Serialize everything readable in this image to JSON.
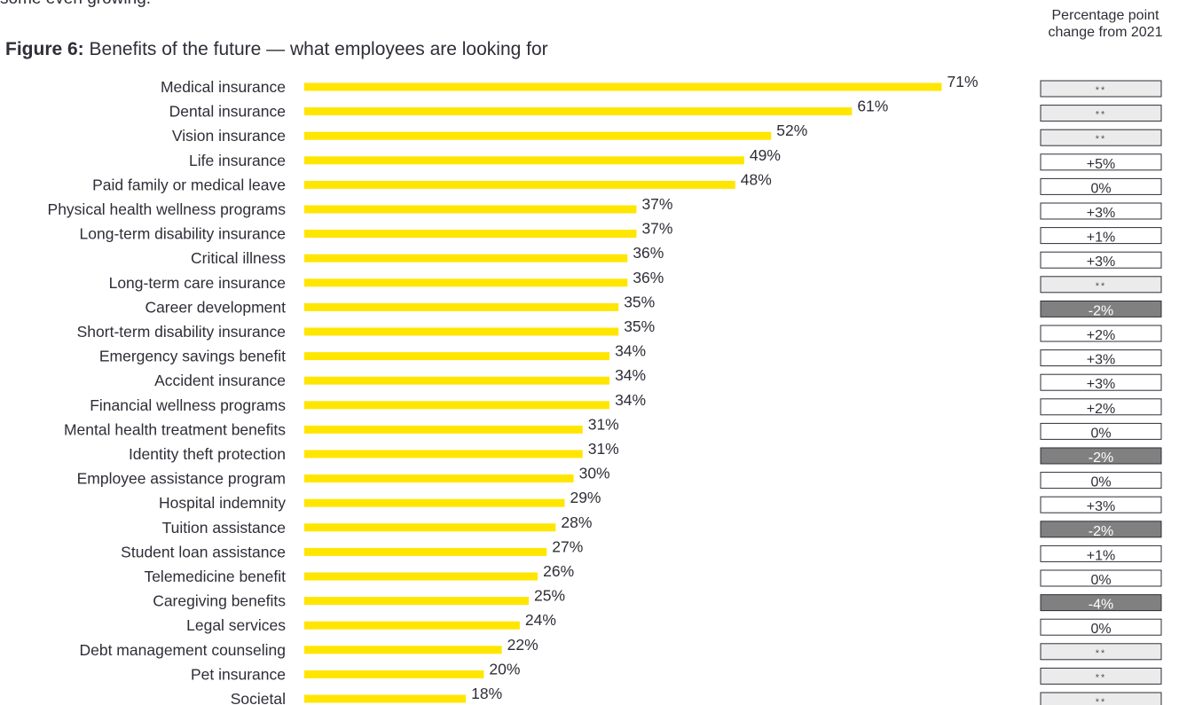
{
  "intro_text": "some even growing.",
  "figure": {
    "label": "Figure 6:",
    "title": "Benefits of the future — what employees are looking for"
  },
  "change_column_header": "Percentage point change from 2021",
  "colors": {
    "bar": "#ffe600",
    "change_no_data_fill": "#ebebeb",
    "change_negative_fill": "#808080",
    "change_neutral_fill": "#ffffff",
    "text": "#2e2e38"
  },
  "chart_data": {
    "type": "bar",
    "orientation": "horizontal",
    "title": "Benefits of the future — what employees are looking for",
    "value_format": "percent",
    "grid": false,
    "xlim": [
      0,
      100
    ],
    "categories": [
      "Medical insurance",
      "Dental insurance",
      "Vision insurance",
      "Life insurance",
      "Paid family or medical leave",
      "Physical health wellness programs",
      "Long-term disability insurance",
      "Critical illness",
      "Long-term care insurance",
      "Career development",
      "Short-term disability insurance",
      "Emergency savings benefit",
      "Accident insurance",
      "Financial wellness programs",
      "Mental health treatment benefits",
      "Identity theft protection",
      "Employee assistance program",
      "Hospital indemnity",
      "Tuition assistance",
      "Student loan assistance",
      "Telemedicine benefit",
      "Caregiving benefits",
      "Legal services",
      "Debt management counseling",
      "Pet insurance",
      "Societal"
    ],
    "values": [
      71,
      61,
      52,
      49,
      48,
      37,
      37,
      36,
      36,
      35,
      35,
      34,
      34,
      34,
      31,
      31,
      30,
      29,
      28,
      27,
      26,
      25,
      24,
      22,
      20,
      18
    ],
    "value_labels": [
      "71%",
      "61%",
      "52%",
      "49%",
      "48%",
      "37%",
      "37%",
      "36%",
      "36%",
      "35%",
      "35%",
      "34%",
      "34%",
      "34%",
      "31%",
      "31%",
      "30%",
      "29%",
      "28%",
      "27%",
      "26%",
      "25%",
      "24%",
      "22%",
      "20%",
      "18%"
    ],
    "change_from_2021": [
      {
        "label": "**",
        "status": "no-data"
      },
      {
        "label": "**",
        "status": "no-data"
      },
      {
        "label": "**",
        "status": "no-data"
      },
      {
        "label": "+5%",
        "status": "neutral"
      },
      {
        "label": "0%",
        "status": "neutral"
      },
      {
        "label": "+3%",
        "status": "neutral"
      },
      {
        "label": "+1%",
        "status": "neutral"
      },
      {
        "label": "+3%",
        "status": "neutral"
      },
      {
        "label": "**",
        "status": "no-data"
      },
      {
        "label": "-2%",
        "status": "negative"
      },
      {
        "label": "+2%",
        "status": "neutral"
      },
      {
        "label": "+3%",
        "status": "neutral"
      },
      {
        "label": "+3%",
        "status": "neutral"
      },
      {
        "label": "+2%",
        "status": "neutral"
      },
      {
        "label": "0%",
        "status": "neutral"
      },
      {
        "label": "-2%",
        "status": "negative"
      },
      {
        "label": "0%",
        "status": "neutral"
      },
      {
        "label": "+3%",
        "status": "neutral"
      },
      {
        "label": "-2%",
        "status": "negative"
      },
      {
        "label": "+1%",
        "status": "neutral"
      },
      {
        "label": "0%",
        "status": "neutral"
      },
      {
        "label": "-4%",
        "status": "negative"
      },
      {
        "label": "0%",
        "status": "neutral"
      },
      {
        "label": "**",
        "status": "no-data"
      },
      {
        "label": "**",
        "status": "no-data"
      },
      {
        "label": "**",
        "status": "no-data"
      }
    ]
  }
}
